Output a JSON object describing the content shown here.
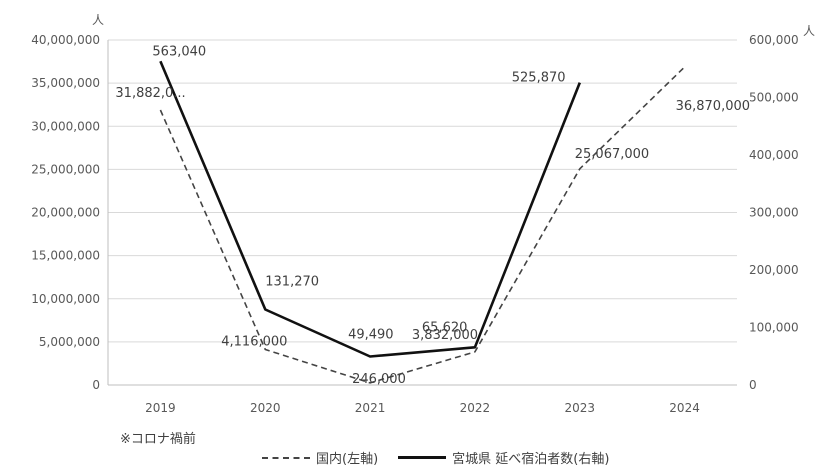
{
  "chart_data": {
    "type": "line",
    "categories": [
      "2019",
      "2020",
      "2021",
      "2022",
      "2023",
      "2024"
    ],
    "y_left_unit": "人",
    "y_right_unit": "人",
    "y_left_ticks": [
      "0",
      "5,000,000",
      "10,000,000",
      "15,000,000",
      "20,000,000",
      "25,000,000",
      "30,000,000",
      "35,000,000",
      "40,000,000"
    ],
    "y_right_ticks": [
      "0",
      "100,000",
      "200,000",
      "300,000",
      "400,000",
      "500,000",
      "600,000"
    ],
    "y_left_range": [
      0,
      40000000
    ],
    "y_right_range": [
      0,
      600000
    ],
    "grid": true,
    "series": [
      {
        "name": "国内(左軸)",
        "axis": "left",
        "style": "dashed",
        "values": [
          31882000,
          4116000,
          246000,
          3832000,
          25067000,
          36870000
        ],
        "labels": [
          "31,882,0...",
          "4,116,000",
          "246,000",
          "3,832,000",
          "25,067,000",
          "36,870,000"
        ]
      },
      {
        "name": "宮城県 延べ宿泊者数(右軸)",
        "axis": "right",
        "style": "solid",
        "values": [
          563040,
          131270,
          49490,
          65620,
          525870,
          null
        ],
        "labels": [
          "563,040",
          "131,270",
          "49,490",
          "65,620",
          "525,870",
          null
        ]
      }
    ],
    "note": "※コロナ禍前",
    "legend_position": "bottom"
  },
  "colors": {
    "domestic": "#444444",
    "miyagi": "#111111",
    "grid": "#d9d9d9"
  }
}
